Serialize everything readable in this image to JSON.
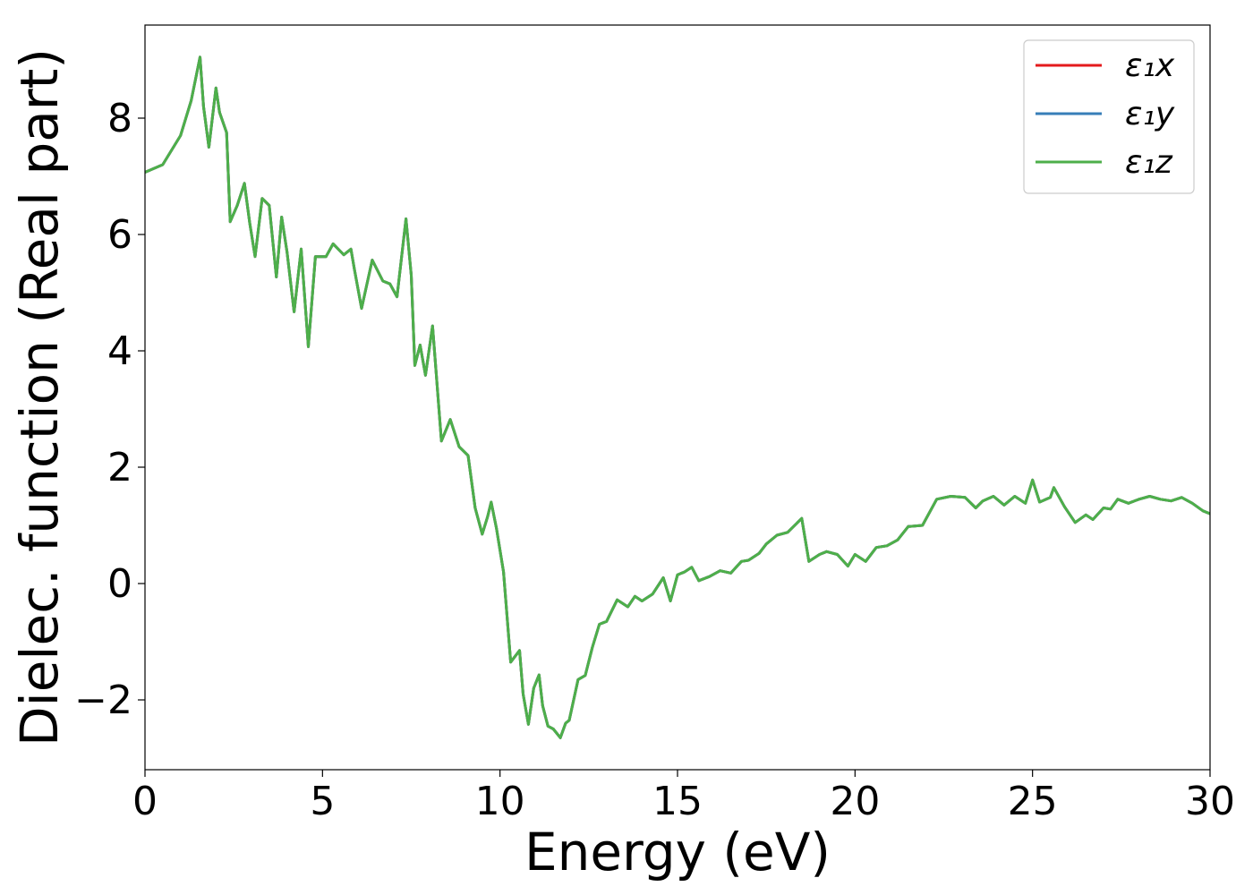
{
  "chart_data": {
    "type": "line",
    "xlabel": "Energy (eV)",
    "ylabel": "Dielec. function (Real part)",
    "xlim": [
      0,
      30
    ],
    "ylim": [
      -3.2,
      9.6
    ],
    "xticks": [
      0,
      5,
      10,
      15,
      20,
      25,
      30
    ],
    "xtick_labels": [
      "0",
      "5",
      "10",
      "15",
      "20",
      "25",
      "30"
    ],
    "yticks": [
      -2,
      0,
      2,
      4,
      6,
      8
    ],
    "ytick_labels": [
      "−2",
      "0",
      "2",
      "4",
      "6",
      "8"
    ],
    "grid": false,
    "legend_position": "top-right",
    "x": [
      0,
      0.5,
      1.0,
      1.3,
      1.55,
      1.65,
      1.8,
      2.0,
      2.1,
      2.3,
      2.4,
      2.6,
      2.8,
      2.95,
      3.1,
      3.3,
      3.5,
      3.7,
      3.85,
      4.0,
      4.2,
      4.4,
      4.6,
      4.8,
      5.1,
      5.3,
      5.6,
      5.8,
      5.9,
      6.1,
      6.4,
      6.7,
      6.9,
      7.1,
      7.35,
      7.5,
      7.6,
      7.75,
      7.9,
      8.1,
      8.35,
      8.6,
      8.85,
      9.1,
      9.3,
      9.5,
      9.65,
      9.75,
      9.9,
      10.1,
      10.3,
      10.55,
      10.65,
      10.8,
      10.95,
      11.1,
      11.2,
      11.35,
      11.5,
      11.7,
      11.85,
      11.95,
      12.2,
      12.4,
      12.6,
      12.8,
      13.0,
      13.3,
      13.6,
      13.8,
      14.0,
      14.3,
      14.6,
      14.8,
      15.0,
      15.2,
      15.4,
      15.6,
      15.9,
      16.2,
      16.5,
      16.8,
      17.0,
      17.3,
      17.5,
      17.8,
      18.1,
      18.5,
      18.7,
      19.0,
      19.2,
      19.5,
      19.8,
      20.0,
      20.3,
      20.6,
      20.9,
      21.2,
      21.5,
      21.9,
      22.3,
      22.7,
      23.1,
      23.4,
      23.6,
      23.9,
      24.2,
      24.5,
      24.8,
      25.0,
      25.2,
      25.5,
      25.6,
      25.9,
      26.2,
      26.5,
      26.7,
      27.0,
      27.2,
      27.4,
      27.7,
      28.0,
      28.3,
      28.6,
      28.9,
      29.2,
      29.5,
      29.8,
      30.0
    ],
    "series": [
      {
        "name": "ε₁x",
        "color": "#e41a1c",
        "values": [
          7.07,
          7.2,
          7.7,
          8.3,
          9.05,
          8.2,
          7.5,
          8.52,
          8.1,
          7.75,
          6.22,
          6.5,
          6.88,
          6.2,
          5.62,
          6.62,
          6.5,
          5.27,
          6.3,
          5.7,
          4.67,
          5.75,
          4.07,
          5.62,
          5.62,
          5.84,
          5.65,
          5.75,
          5.4,
          4.73,
          5.56,
          5.2,
          5.15,
          4.93,
          6.27,
          5.3,
          3.75,
          4.1,
          3.58,
          4.43,
          2.45,
          2.82,
          2.35,
          2.2,
          1.3,
          0.85,
          1.15,
          1.4,
          0.95,
          0.2,
          -1.35,
          -1.15,
          -1.9,
          -2.42,
          -1.8,
          -1.57,
          -2.1,
          -2.45,
          -2.5,
          -2.65,
          -2.4,
          -2.35,
          -1.65,
          -1.58,
          -1.1,
          -0.7,
          -0.65,
          -0.28,
          -0.4,
          -0.22,
          -0.3,
          -0.18,
          0.1,
          -0.3,
          0.15,
          0.2,
          0.28,
          0.05,
          0.12,
          0.22,
          0.18,
          0.38,
          0.4,
          0.52,
          0.68,
          0.83,
          0.88,
          1.12,
          0.38,
          0.5,
          0.55,
          0.5,
          0.3,
          0.5,
          0.38,
          0.62,
          0.65,
          0.75,
          0.98,
          1.0,
          1.45,
          1.5,
          1.48,
          1.3,
          1.42,
          1.5,
          1.35,
          1.5,
          1.38,
          1.78,
          1.4,
          1.48,
          1.65,
          1.32,
          1.05,
          1.18,
          1.1,
          1.3,
          1.28,
          1.45,
          1.38,
          1.45,
          1.5,
          1.45,
          1.42,
          1.48,
          1.38,
          1.25,
          1.2
        ]
      },
      {
        "name": "ε₁y",
        "color": "#377eb8",
        "values": [
          7.07,
          7.2,
          7.7,
          8.3,
          9.05,
          8.2,
          7.5,
          8.52,
          8.1,
          7.75,
          6.22,
          6.5,
          6.88,
          6.2,
          5.62,
          6.62,
          6.5,
          5.27,
          6.3,
          5.7,
          4.67,
          5.75,
          4.07,
          5.62,
          5.62,
          5.84,
          5.65,
          5.75,
          5.4,
          4.73,
          5.56,
          5.2,
          5.15,
          4.93,
          6.27,
          5.3,
          3.75,
          4.1,
          3.58,
          4.43,
          2.45,
          2.82,
          2.35,
          2.2,
          1.3,
          0.85,
          1.15,
          1.4,
          0.95,
          0.2,
          -1.35,
          -1.15,
          -1.9,
          -2.42,
          -1.8,
          -1.57,
          -2.1,
          -2.45,
          -2.5,
          -2.65,
          -2.4,
          -2.35,
          -1.65,
          -1.58,
          -1.1,
          -0.7,
          -0.65,
          -0.28,
          -0.4,
          -0.22,
          -0.3,
          -0.18,
          0.1,
          -0.3,
          0.15,
          0.2,
          0.28,
          0.05,
          0.12,
          0.22,
          0.18,
          0.38,
          0.4,
          0.52,
          0.68,
          0.83,
          0.88,
          1.12,
          0.38,
          0.5,
          0.55,
          0.5,
          0.3,
          0.5,
          0.38,
          0.62,
          0.65,
          0.75,
          0.98,
          1.0,
          1.45,
          1.5,
          1.48,
          1.3,
          1.42,
          1.5,
          1.35,
          1.5,
          1.38,
          1.78,
          1.4,
          1.48,
          1.65,
          1.32,
          1.05,
          1.18,
          1.1,
          1.3,
          1.28,
          1.45,
          1.38,
          1.45,
          1.5,
          1.45,
          1.42,
          1.48,
          1.38,
          1.25,
          1.2
        ]
      },
      {
        "name": "ε₁z",
        "color": "#4daf4a",
        "values": [
          7.07,
          7.2,
          7.7,
          8.3,
          9.05,
          8.2,
          7.5,
          8.52,
          8.1,
          7.75,
          6.22,
          6.5,
          6.88,
          6.2,
          5.62,
          6.62,
          6.5,
          5.27,
          6.3,
          5.7,
          4.67,
          5.75,
          4.07,
          5.62,
          5.62,
          5.84,
          5.65,
          5.75,
          5.4,
          4.73,
          5.56,
          5.2,
          5.15,
          4.93,
          6.27,
          5.3,
          3.75,
          4.1,
          3.58,
          4.43,
          2.45,
          2.82,
          2.35,
          2.2,
          1.3,
          0.85,
          1.15,
          1.4,
          0.95,
          0.2,
          -1.35,
          -1.15,
          -1.9,
          -2.42,
          -1.8,
          -1.57,
          -2.1,
          -2.45,
          -2.5,
          -2.65,
          -2.4,
          -2.35,
          -1.65,
          -1.58,
          -1.1,
          -0.7,
          -0.65,
          -0.28,
          -0.4,
          -0.22,
          -0.3,
          -0.18,
          0.1,
          -0.3,
          0.15,
          0.2,
          0.28,
          0.05,
          0.12,
          0.22,
          0.18,
          0.38,
          0.4,
          0.52,
          0.68,
          0.83,
          0.88,
          1.12,
          0.38,
          0.5,
          0.55,
          0.5,
          0.3,
          0.5,
          0.38,
          0.62,
          0.65,
          0.75,
          0.98,
          1.0,
          1.45,
          1.5,
          1.48,
          1.3,
          1.42,
          1.5,
          1.35,
          1.5,
          1.38,
          1.78,
          1.4,
          1.48,
          1.65,
          1.32,
          1.05,
          1.18,
          1.1,
          1.3,
          1.28,
          1.45,
          1.38,
          1.45,
          1.5,
          1.45,
          1.42,
          1.48,
          1.38,
          1.25,
          1.2
        ]
      }
    ]
  }
}
